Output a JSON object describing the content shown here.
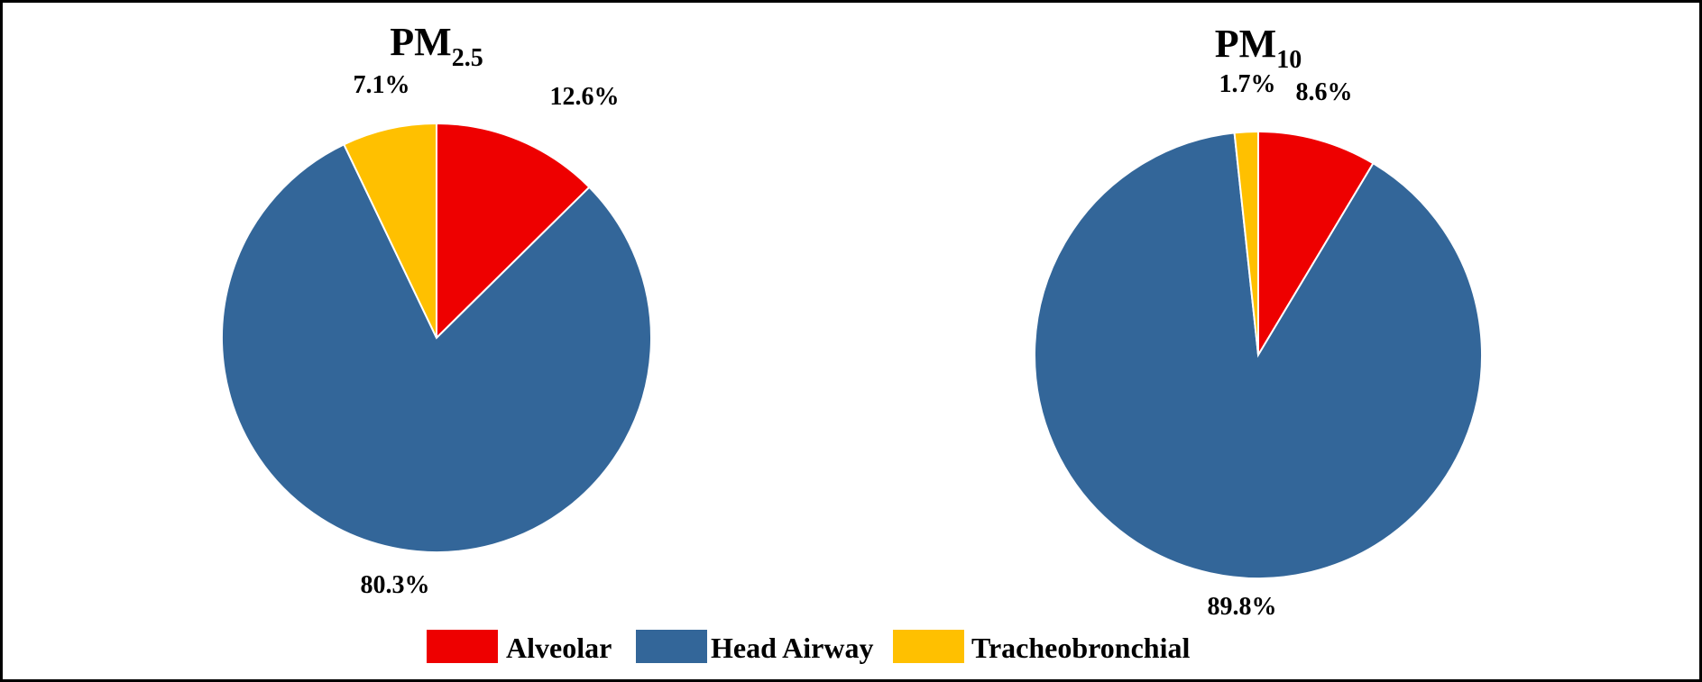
{
  "chart_data": [
    {
      "type": "pie",
      "title": "PM",
      "title_subscript": "2.5",
      "slices": [
        {
          "name": "Alveolar",
          "value": 12.6,
          "label": "12.6%",
          "color": "#EE0000"
        },
        {
          "name": "Head Airway",
          "value": 80.3,
          "label": "80.3%",
          "color": "#336699"
        },
        {
          "name": "Tracheobronchial",
          "value": 7.1,
          "label": "7.1%",
          "color": "#FFC000"
        }
      ]
    },
    {
      "type": "pie",
      "title": "PM",
      "title_subscript": "10",
      "slices": [
        {
          "name": "Alveolar",
          "value": 8.6,
          "label": "8.6%",
          "color": "#EE0000"
        },
        {
          "name": "Head Airway",
          "value": 89.8,
          "label": "89.8%",
          "color": "#336699"
        },
        {
          "name": "Tracheobronchial",
          "value": 1.7,
          "label": "1.7%",
          "color": "#FFC000"
        }
      ]
    }
  ],
  "legend": {
    "position": "bottom-center",
    "items": [
      {
        "label": "Alveolar",
        "color": "#EE0000"
      },
      {
        "label": "Head Airway",
        "color": "#336699"
      },
      {
        "label": "Tracheobronchial",
        "color": "#FFC000"
      }
    ]
  }
}
